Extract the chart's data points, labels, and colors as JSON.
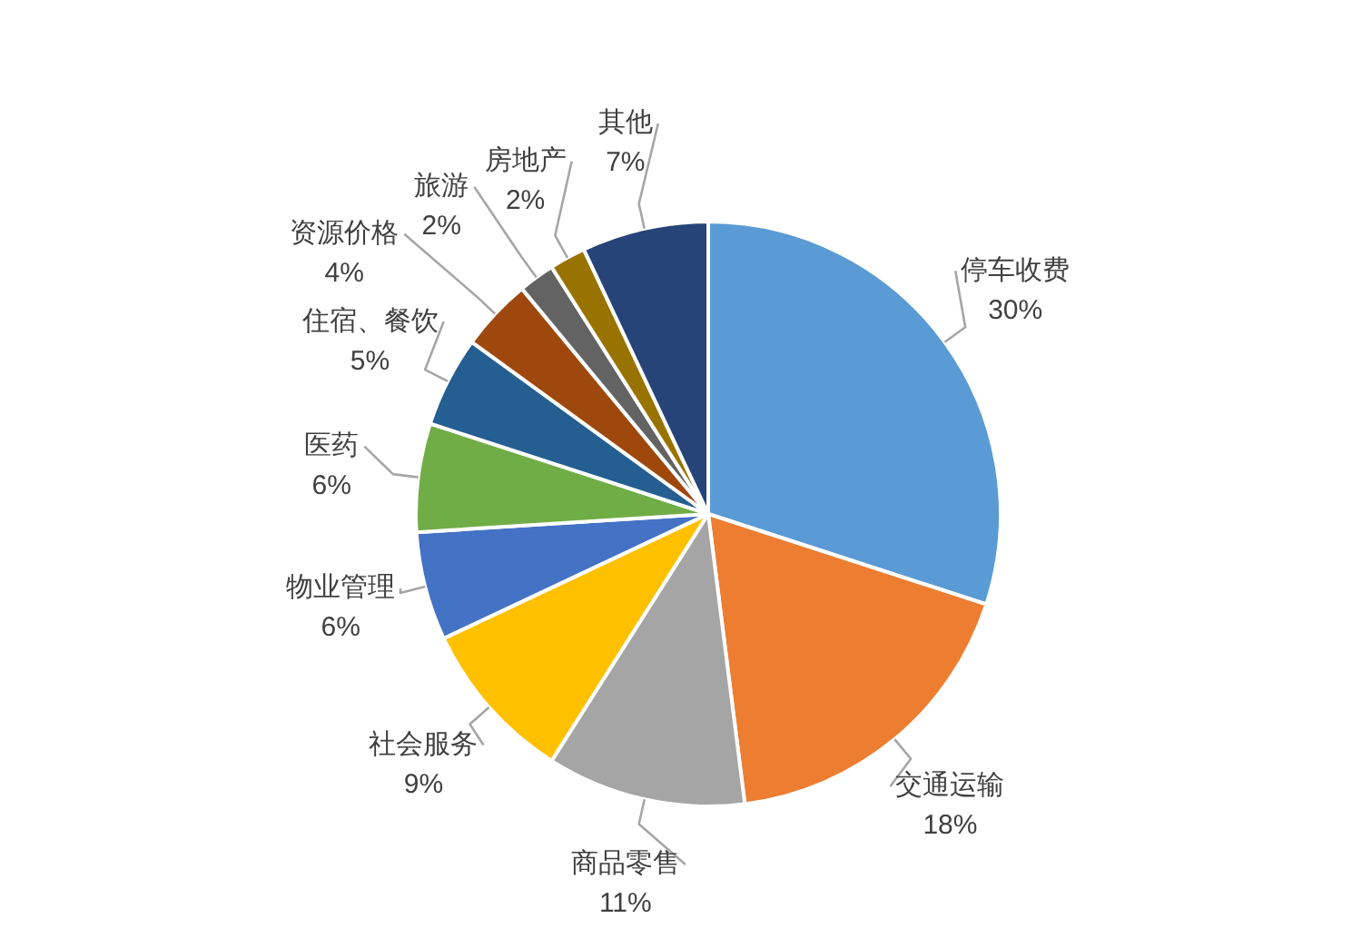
{
  "chart_data": {
    "type": "pie",
    "categories": [
      "停车收费",
      "交通运输",
      "商品零售",
      "社会服务",
      "物业管理",
      "医药",
      "住宿、餐饮",
      "资源价格",
      "旅游",
      "房地产",
      "其他"
    ],
    "values": [
      30,
      18,
      11,
      9,
      6,
      6,
      5,
      4,
      2,
      2,
      7
    ],
    "value_labels": [
      "30%",
      "18%",
      "11%",
      "9%",
      "6%",
      "6%",
      "5%",
      "4%",
      "2%",
      "2%",
      "7%"
    ],
    "colors": [
      "#5b9bd5",
      "#ed7d31",
      "#a5a5a5",
      "#ffc000",
      "#4472c4",
      "#70ad47",
      "#255e91",
      "#9e480e",
      "#636363",
      "#997300",
      "#264478"
    ],
    "legend": false
  }
}
